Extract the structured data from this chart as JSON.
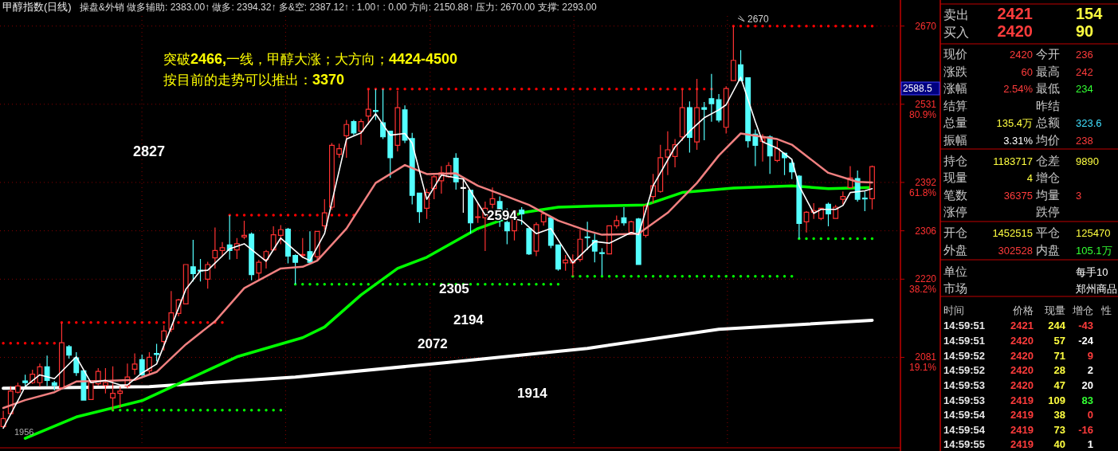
{
  "chart_data": {
    "type": "candlestick",
    "title": "甲醇指数(日线)",
    "subtitle": "操盘&外销  做多辅助: 2383.00↑  做多: 2394.32↑  多&空: 2387.12↑  : 1.00↑  : 0.00  方向: 2150.88↑  压力: 2670.00  支撑: 2293.00",
    "categories": [
      null,
      null,
      null,
      null,
      null,
      null,
      null,
      null,
      null,
      null,
      null,
      null,
      null,
      null,
      null,
      null,
      null,
      null,
      null,
      null,
      null,
      null,
      null,
      null,
      null,
      null,
      null,
      null,
      null,
      null,
      null,
      null,
      null,
      null,
      null,
      null,
      null,
      null,
      null,
      null,
      null,
      null,
      null,
      null,
      null,
      null,
      null,
      null,
      null,
      null,
      null,
      null,
      null,
      null,
      null,
      null,
      null,
      null,
      null,
      null,
      null,
      null,
      null,
      null,
      null,
      null,
      null,
      null,
      null,
      null,
      null,
      null,
      null,
      null,
      null,
      null,
      null,
      null,
      null,
      null,
      null,
      null,
      null,
      null,
      null,
      null,
      null,
      null,
      null,
      null,
      null,
      null,
      null,
      null,
      null,
      null,
      null,
      null,
      null,
      null,
      null,
      null,
      null,
      null,
      null,
      null,
      null,
      null,
      null,
      null,
      null,
      null,
      null,
      null,
      null,
      null,
      null,
      null,
      null,
      null
    ],
    "ohlc": [
      [
        1958,
        1986,
        1956,
        1972
      ],
      [
        1981,
        2030,
        1981,
        2021
      ],
      [
        2019,
        2036,
        2017,
        2030
      ],
      [
        2039,
        2050,
        2029,
        2036
      ],
      [
        2036,
        2059,
        2034,
        2051
      ],
      [
        2036,
        2070,
        2029,
        2064
      ],
      [
        2064,
        2084,
        2030,
        2040
      ],
      [
        2036,
        2039,
        2022,
        2031
      ],
      [
        2027,
        2143,
        2027,
        2107
      ],
      [
        2100,
        2103,
        2079,
        2085
      ],
      [
        2080,
        2090,
        2048,
        2054
      ],
      [
        2057,
        2057,
        2005,
        2005
      ],
      [
        2006,
        2036,
        2006,
        2036
      ],
      [
        2034,
        2062,
        2031,
        2056
      ],
      [
        2031,
        2062,
        2017,
        2036
      ],
      [
        2009,
        2065,
        1987,
        2017
      ],
      [
        2017,
        2029,
        1991,
        2021
      ],
      [
        2030,
        2070,
        2026,
        2046
      ],
      [
        2060,
        2088,
        2050,
        2069
      ],
      [
        2077,
        2086,
        2048,
        2050
      ],
      [
        2057,
        2090,
        2049,
        2081
      ],
      [
        2088,
        2105,
        2074,
        2086
      ],
      [
        2109,
        2138,
        2093,
        2128
      ],
      [
        2131,
        2199,
        2126,
        2160
      ],
      [
        2159,
        2185,
        2154,
        2183
      ],
      [
        2176,
        2246,
        2176,
        2246
      ],
      [
        2242,
        2290,
        2216,
        2230
      ],
      [
        2236,
        2256,
        2216,
        2235
      ],
      [
        2220,
        2251,
        2203,
        2246
      ],
      [
        2258,
        2312,
        2239,
        2271
      ],
      [
        2271,
        2286,
        2261,
        2276
      ],
      [
        2281,
        2334,
        2255,
        2271
      ],
      [
        2272,
        2293,
        2256,
        2283
      ],
      [
        2295,
        2324,
        2291,
        2298
      ],
      [
        2300,
        2303,
        2218,
        2228
      ],
      [
        2231,
        2254,
        2218,
        2250
      ],
      [
        2255,
        2272,
        2239,
        2269
      ],
      [
        2272,
        2314,
        2272,
        2299
      ],
      [
        2298,
        2316,
        2282,
        2308
      ],
      [
        2309,
        2311,
        2248,
        2261
      ],
      [
        2262,
        2264,
        2211,
        2250
      ],
      [
        2262,
        2293,
        2258,
        2264
      ],
      [
        2269,
        2305,
        2248,
        2250
      ],
      [
        2260,
        2305,
        2254,
        2305
      ],
      [
        2315,
        2362,
        2308,
        2338
      ],
      [
        2348,
        2462,
        2343,
        2458
      ],
      [
        2442,
        2461,
        2436,
        2452
      ],
      [
        2475,
        2503,
        2436,
        2495
      ],
      [
        2500,
        2503,
        2476,
        2480
      ],
      [
        2483,
        2505,
        2459,
        2500
      ],
      [
        2510,
        2558,
        2495,
        2522
      ],
      [
        2520,
        2558,
        2503,
        2518
      ],
      [
        2498,
        2558,
        2469,
        2473
      ],
      [
        2483,
        2483,
        2400,
        2436
      ],
      [
        2458,
        2555,
        2447,
        2525
      ],
      [
        2521,
        2529,
        2462,
        2467
      ],
      [
        2470,
        2480,
        2353,
        2369
      ],
      [
        2373,
        2373,
        2320,
        2340
      ],
      [
        2346,
        2381,
        2327,
        2374
      ],
      [
        2381,
        2405,
        2362,
        2402
      ],
      [
        2395,
        2421,
        2372,
        2409
      ],
      [
        2402,
        2428,
        2400,
        2422
      ],
      [
        2435,
        2444,
        2379,
        2393
      ],
      [
        2383,
        2400,
        2338,
        2383
      ],
      [
        2378,
        2378,
        2301,
        2320
      ],
      [
        2330,
        2355,
        2320,
        2331
      ],
      [
        2329,
        2358,
        2270,
        2346
      ],
      [
        2353,
        2383,
        2346,
        2363
      ],
      [
        2358,
        2367,
        2313,
        2324
      ],
      [
        2321,
        2346,
        2282,
        2306
      ],
      [
        2306,
        2342,
        2289,
        2342
      ],
      [
        2343,
        2348,
        2317,
        2336
      ],
      [
        2310,
        2310,
        2263,
        2265
      ],
      [
        2270,
        2321,
        2261,
        2317
      ],
      [
        2322,
        2339,
        2315,
        2336
      ],
      [
        2329,
        2329,
        2275,
        2280
      ],
      [
        2281,
        2281,
        2235,
        2238
      ],
      [
        2249,
        2263,
        2235,
        2254
      ],
      [
        2249,
        2264,
        2225,
        2254
      ],
      [
        2255,
        2308,
        2251,
        2291
      ],
      [
        2295,
        2322,
        2272,
        2294
      ],
      [
        2289,
        2301,
        2250,
        2270
      ],
      [
        2267,
        2275,
        2227,
        2266
      ],
      [
        2265,
        2315,
        2265,
        2315
      ],
      [
        2315,
        2333,
        2310,
        2324
      ],
      [
        2329,
        2348,
        2315,
        2320
      ],
      [
        2303,
        2324,
        2301,
        2322
      ],
      [
        2327,
        2329,
        2246,
        2246
      ],
      [
        2298,
        2353,
        2294,
        2350
      ],
      [
        2367,
        2407,
        2355,
        2386
      ],
      [
        2376,
        2459,
        2374,
        2436
      ],
      [
        2437,
        2483,
        2405,
        2450
      ],
      [
        2438,
        2469,
        2419,
        2459
      ],
      [
        2473,
        2558,
        2466,
        2525
      ],
      [
        2525,
        2536,
        2445,
        2472
      ],
      [
        2464,
        2576,
        2450,
        2525
      ],
      [
        2525,
        2535,
        2467,
        2522
      ],
      [
        2541,
        2585,
        2500,
        2532
      ],
      [
        2539,
        2549,
        2499,
        2503
      ],
      [
        2490,
        2563,
        2479,
        2559
      ],
      [
        2573,
        2670,
        2573,
        2609
      ],
      [
        2601,
        2627,
        2573,
        2573
      ],
      [
        2578,
        2578,
        2454,
        2466
      ],
      [
        2478,
        2486,
        2421,
        2458
      ],
      [
        2465,
        2478,
        2429,
        2470
      ],
      [
        2473,
        2476,
        2407,
        2439
      ],
      [
        2431,
        2466,
        2428,
        2452
      ],
      [
        2444,
        2445,
        2405,
        2436
      ],
      [
        2426,
        2433,
        2398,
        2411
      ],
      [
        2403,
        2405,
        2292,
        2319
      ],
      [
        2322,
        2341,
        2303,
        2339
      ],
      [
        2339,
        2355,
        2327,
        2342
      ],
      [
        2328,
        2347,
        2325,
        2346
      ],
      [
        2353,
        2356,
        2314,
        2336
      ],
      [
        2328,
        2352,
        2327,
        2348
      ],
      [
        2362,
        2376,
        2353,
        2367
      ],
      [
        2383,
        2421,
        2381,
        2400
      ],
      [
        2399,
        2413,
        2358,
        2362
      ],
      [
        2364,
        2376,
        2341,
        2363
      ],
      [
        2363,
        2422,
        2344,
        2420
      ]
    ],
    "series": [
      {
        "type": "line",
        "color": "#ffffff",
        "values": [
          2026,
          null,
          null,
          null,
          null,
          null,
          null,
          null,
          null,
          null,
          null,
          null,
          null,
          null,
          null,
          null,
          null,
          null,
          null,
          null,
          2029,
          null,
          null,
          null,
          null,
          null,
          null,
          null,
          null,
          null,
          null,
          null,
          null,
          null,
          null,
          null,
          null,
          null,
          null,
          null,
          2046,
          null,
          null,
          null,
          null,
          null,
          null,
          null,
          null,
          null,
          null,
          null,
          null,
          null,
          null,
          null,
          null,
          null,
          null,
          null,
          null,
          2072,
          null,
          null,
          null,
          null,
          null,
          null,
          null,
          null,
          null,
          null,
          null,
          null,
          null,
          null,
          null,
          null,
          null,
          null,
          2097,
          null,
          null,
          null,
          null,
          null,
          null,
          null,
          null,
          null,
          null,
          null,
          null,
          null,
          null,
          null,
          null,
          null,
          2131,
          null,
          null,
          null,
          null,
          null,
          null,
          null,
          null,
          null,
          null,
          null,
          null,
          null,
          null,
          null,
          null,
          null,
          null,
          null,
          null,
          2147
        ]
      },
      {
        "type": "line",
        "color": "#00ff00",
        "values": [
          null,
          null,
          null,
          1937,
          null,
          null,
          null,
          null,
          null,
          null,
          1975,
          null,
          null,
          null,
          null,
          null,
          null,
          null,
          null,
          2004,
          null,
          null,
          null,
          null,
          null,
          2040,
          null,
          null,
          null,
          null,
          null,
          null,
          2082,
          null,
          null,
          null,
          null,
          null,
          null,
          null,
          null,
          2116,
          null,
          null,
          2135,
          null,
          null,
          null,
          null,
          2192,
          null,
          null,
          null,
          null,
          2239,
          null,
          null,
          null,
          2259,
          null,
          null,
          null,
          null,
          null,
          null,
          2310,
          null,
          null,
          null,
          null,
          null,
          2338,
          null,
          null,
          null,
          null,
          2348,
          null,
          null,
          null,
          null,
          2350,
          null,
          null,
          null,
          null,
          null,
          null,
          2352,
          null,
          null,
          null,
          null,
          2374,
          null,
          null,
          null,
          null,
          null,
          null,
          2382,
          null,
          null,
          null,
          null,
          null,
          null,
          null,
          2386,
          null,
          null,
          null,
          null,
          2381,
          null,
          null,
          null,
          null,
          null,
          2383
        ]
      },
      {
        "type": "line",
        "color": "#f08080",
        "values": [
          1991,
          null,
          null,
          2005,
          null,
          null,
          null,
          2019,
          null,
          null,
          2038,
          null,
          null,
          null,
          2039,
          null,
          null,
          null,
          2041,
          null,
          null,
          2055,
          null,
          null,
          null,
          2104,
          null,
          null,
          null,
          2145,
          null,
          null,
          null,
          2204,
          null,
          null,
          null,
          null,
          2239,
          null,
          null,
          2242,
          null,
          2253,
          null,
          null,
          null,
          2310,
          null,
          null,
          null,
          2391,
          null,
          null,
          null,
          2423,
          null,
          null,
          2407,
          null,
          null,
          null,
          2408,
          null,
          null,
          2386,
          null,
          null,
          null,
          2367,
          null,
          null,
          2352,
          null,
          null,
          null,
          2324,
          null,
          null,
          null,
          2306,
          null,
          2299,
          null,
          null,
          null,
          null,
          2301,
          null,
          null,
          null,
          2338,
          null,
          null,
          null,
          2391,
          null,
          null,
          2440,
          null,
          null,
          2479,
          null,
          null,
          null,
          null,
          2469,
          null,
          2459,
          null,
          null,
          null,
          null,
          2409,
          null,
          null,
          null,
          2393,
          null,
          2392
        ]
      },
      {
        "type": "line",
        "color": "#ffffff",
        "values": [
          1955,
          null,
          2004,
          2029,
          null,
          2050,
          null,
          2043,
          null,
          null,
          2082,
          null,
          2036,
          null,
          2040,
          null,
          2032,
          2032,
          null,
          2053,
          null,
          2069,
          null,
          2135,
          null,
          2202,
          null,
          2235,
          2236,
          null,
          null,
          2274,
          null,
          2283,
          null,
          null,
          2252,
          null,
          2293,
          null,
          null,
          2259,
          2253,
          null,
          2301,
          null,
          null,
          2469,
          null,
          2480,
          null,
          2514,
          null,
          2476,
          null,
          2479,
          2462,
          null,
          2362,
          null,
          2405,
          null,
          null,
          2398,
          null,
          null,
          2334,
          null,
          2345,
          2331,
          null,
          2324,
          null,
          2301,
          null,
          2310,
          null,
          null,
          2249,
          null,
          null,
          2287,
          null,
          2284,
          null,
          null,
          2303,
          2299,
          null,
          2386,
          null,
          null,
          2455,
          null,
          2483,
          null,
          2507,
          null,
          2521,
          2530,
          null,
          2579,
          null,
          2500,
          2464,
          null,
          2453,
          null,
          2433,
          2386,
          null,
          2337,
          2344,
          null,
          2344,
          2351,
          2374,
          null,
          2377,
          2381
        ]
      },
      {
        "type": "line",
        "line_style": "dotted",
        "color": "#ff0000",
        "values": [
          2106,
          2106,
          2106,
          2106,
          2106,
          2106,
          2106,
          2106,
          2143,
          2143,
          2143,
          2143,
          2143,
          2143,
          2143,
          2143,
          2143,
          2143,
          2143,
          2143,
          2143,
          2143,
          2143,
          2143,
          2143,
          2143,
          2143,
          2143,
          2143,
          2143,
          2143,
          2334,
          2334,
          2334,
          2334,
          2334,
          2334,
          2334,
          2334,
          2334,
          2334,
          2334,
          2334,
          2334,
          2334,
          2334,
          2334,
          2334,
          2334,
          2334,
          2558,
          2558,
          2558,
          2558,
          2558,
          2558,
          2558,
          2558,
          2558,
          2558,
          2558,
          2558,
          2558,
          2558,
          2558,
          2558,
          2558,
          2558,
          2558,
          2558,
          2558,
          2558,
          2558,
          2558,
          2558,
          2558,
          2558,
          2558,
          2558,
          2558,
          2558,
          2558,
          2558,
          2558,
          2558,
          2558,
          2558,
          2558,
          2558,
          2558,
          2558,
          2558,
          2558,
          2558,
          2558,
          2558,
          2558,
          2558,
          2558,
          null,
          2670,
          2670,
          2670,
          2670,
          2670,
          2670,
          2670,
          2670,
          2670,
          2670,
          2670,
          2670,
          2670,
          2670,
          2670,
          2670,
          2670,
          2670,
          2670,
          2670
        ]
      },
      {
        "type": "line",
        "line_style": "dotted",
        "color": "#00ff00",
        "values": [
          null,
          null,
          null,
          null,
          null,
          null,
          null,
          null,
          null,
          null,
          null,
          null,
          null,
          null,
          null,
          1987,
          1987,
          1987,
          1987,
          1987,
          1987,
          1987,
          1987,
          1987,
          1987,
          1987,
          1987,
          1987,
          1987,
          1987,
          1987,
          1987,
          1987,
          1987,
          1987,
          1987,
          1987,
          1987,
          1987,
          1987,
          2211,
          2211,
          2211,
          2211,
          2211,
          2211,
          2211,
          2211,
          2211,
          2211,
          2211,
          2211,
          2211,
          2211,
          2211,
          2211,
          2211,
          2211,
          2211,
          2211,
          2211,
          2211,
          2211,
          2211,
          2211,
          2211,
          2211,
          2211,
          2211,
          2211,
          2211,
          2211,
          2211,
          2211,
          2211,
          2211,
          2211,
          2211,
          2225,
          2225,
          2225,
          2225,
          2225,
          2225,
          2225,
          2225,
          2225,
          2225,
          2225,
          2225,
          2225,
          2225,
          2225,
          2225,
          2225,
          2225,
          2225,
          2225,
          2225,
          2225,
          2225,
          2225,
          2225,
          2225,
          2225,
          2225,
          2225,
          2225,
          2225,
          2292,
          2292,
          2292,
          2292,
          2292,
          2292,
          2292,
          2292,
          2292,
          2292,
          2292
        ]
      }
    ],
    "ylim": [
      1923,
      2688
    ],
    "yticks": [
      2670,
      {
        "value": 2531,
        "label": "2531\n80.9%"
      },
      {
        "value": 2392,
        "label": "2392\n61.8%"
      },
      2306,
      {
        "value": 2220,
        "label": "2220\n38.2%"
      },
      {
        "value": 2081,
        "label": "2081\n19.1%"
      }
    ],
    "grid": true,
    "tick_labels": "y",
    "annotations": [
      "突破2466,一线，甲醇大涨；大方向；4424-4500",
      "按目前的走势可以推出：3370",
      "2827",
      "2594",
      "2305",
      "2194",
      "2072",
      "1914",
      {
        "text": "2670",
        "y": 2670
      },
      "2588.5",
      "1956",
      "卖出\t2421\t\t154",
      "买入\t2420\t\t90",
      "现价\t2420\t今开\t236",
      "涨跌\t60\t最高\t242",
      "涨幅\t2.54%\t最低\t234",
      "结算\t\t昨结\t",
      "总量\t135.4万\t总额\t323.6",
      "振幅\t3.31%\t均价\t238",
      "持仓\t1183717\t仓差\t9890",
      "现量\t4\t增仓\t",
      "笔数\t36375\t均量\t3",
      "涨停\t\t跌停\t",
      "开仓\t1452515\t平仓\t125470",
      "外盘\t302528\t内盘\t105.1万",
      "单位\t\t\t每手10",
      "市场\t\t\t郑州商品",
      "时间\t价格\t现量\t增仓\t性",
      "14:59:51\t2421\t244\t-43",
      "14:59:51\t2420\t57\t-24",
      "14:59:52\t2420\t71\t9",
      "14:59:52\t2420\t28\t2",
      "14:59:53\t2420\t47\t20",
      "14:59:53\t2419\t109\t83",
      "14:59:54\t2419\t38\t0",
      "14:59:54\t2419\t73\t-16",
      "14:59:55\t2419\t40\t1"
    ]
  }
}
